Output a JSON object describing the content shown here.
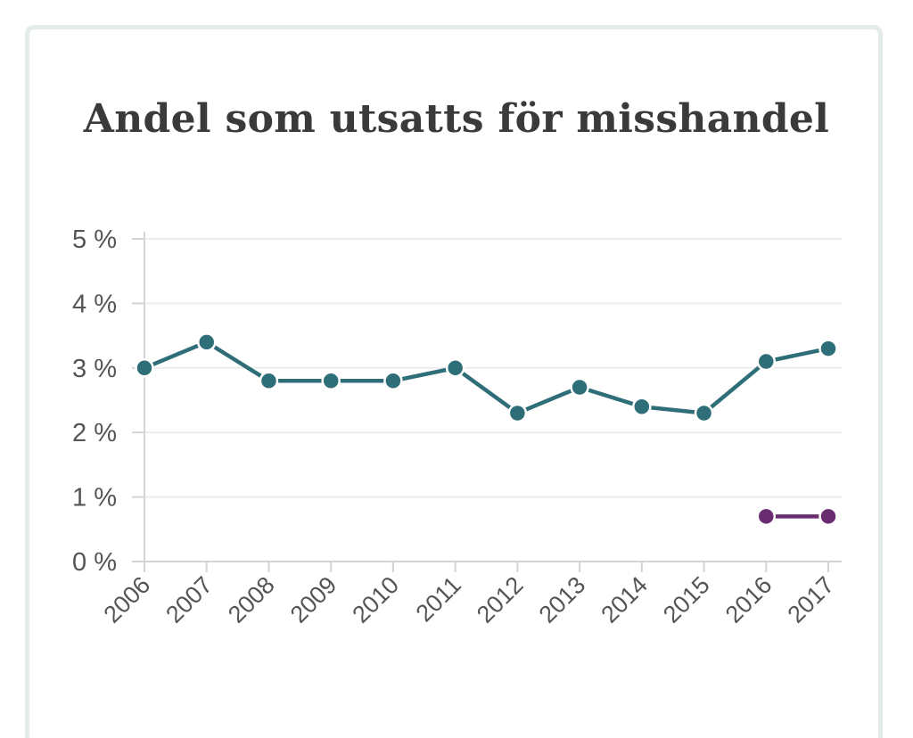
{
  "chart_data": {
    "type": "line",
    "title": "Andel som utsatts för misshandel",
    "xlabel": "",
    "ylabel": "",
    "categories": [
      "2006",
      "2007",
      "2008",
      "2009",
      "2010",
      "2011",
      "2012",
      "2013",
      "2014",
      "2015",
      "2016",
      "2017"
    ],
    "y_ticks": [
      "0 %",
      "1 %",
      "2 %",
      "3 %",
      "4 %",
      "5 %"
    ],
    "ylim": [
      0,
      5
    ],
    "grid": true,
    "legend": "none",
    "series": [
      {
        "color": "#2d6e78",
        "values": [
          3.0,
          3.4,
          2.8,
          2.8,
          2.8,
          3.0,
          2.3,
          2.7,
          2.4,
          2.3,
          3.1,
          3.3
        ]
      },
      {
        "color": "#6a2c70",
        "values": [
          null,
          null,
          null,
          null,
          null,
          null,
          null,
          null,
          null,
          null,
          0.7,
          0.7
        ]
      }
    ]
  }
}
